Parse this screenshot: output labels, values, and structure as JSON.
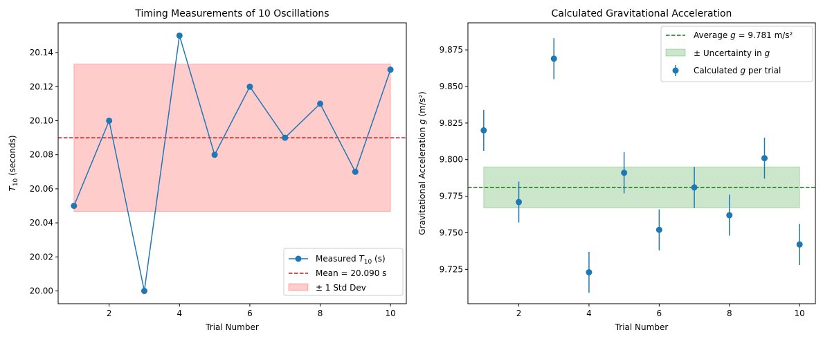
{
  "chart_data": [
    {
      "type": "line",
      "title": "Timing Measurements of 10 Oscillations",
      "xlabel": "Trial Number",
      "ylabel_main": "T",
      "ylabel_sub": "10",
      "ylabel_rest": " (seconds)",
      "xlim": [
        0.55,
        10.45
      ],
      "ylim": [
        19.9925,
        20.1575
      ],
      "xticks": [
        2,
        4,
        6,
        8,
        10
      ],
      "yticks": [
        20.0,
        20.02,
        20.04,
        20.06,
        20.08,
        20.1,
        20.12,
        20.14
      ],
      "ytick_labels": [
        "20.00",
        "20.02",
        "20.04",
        "20.06",
        "20.08",
        "20.10",
        "20.12",
        "20.14"
      ],
      "x": [
        1,
        2,
        3,
        4,
        5,
        6,
        7,
        8,
        9,
        10
      ],
      "series": [
        {
          "name": "Measured T10 (s)",
          "values": [
            20.05,
            20.1,
            20.0,
            20.15,
            20.08,
            20.12,
            20.09,
            20.11,
            20.07,
            20.13
          ]
        }
      ],
      "mean": 20.09,
      "band": {
        "x": [
          1,
          10
        ],
        "y": [
          20.0467,
          20.1333
        ]
      },
      "legend": {
        "placement": "lower-right",
        "entries": [
          {
            "main": "Measured ",
            "it": "T",
            "sub": "10",
            "rest": " (s)"
          },
          {
            "main": "Mean = 20.090 s"
          },
          {
            "main": "± 1 Std Dev"
          }
        ]
      },
      "colors": {
        "line": "#1f77b4",
        "mean": "#ff0000",
        "band": "#ff0000"
      }
    },
    {
      "type": "scatter",
      "title": "Calculated Gravitational Acceleration",
      "xlabel": "Trial Number",
      "ylabel_main": "Gravitational Acceleration ",
      "ylabel_it": "g",
      "ylabel_rest": " (m/s²)",
      "xlim": [
        0.55,
        10.45
      ],
      "ylim": [
        9.7015,
        9.8935
      ],
      "xticks": [
        2,
        4,
        6,
        8,
        10
      ],
      "yticks": [
        9.725,
        9.75,
        9.775,
        9.8,
        9.825,
        9.85,
        9.875
      ],
      "ytick_labels": [
        "9.725",
        "9.750",
        "9.775",
        "9.800",
        "9.825",
        "9.850",
        "9.875"
      ],
      "x": [
        1,
        2,
        3,
        4,
        5,
        6,
        7,
        8,
        9,
        10
      ],
      "series": [
        {
          "name": "Calculated g per trial",
          "values": [
            9.82,
            9.771,
            9.869,
            9.723,
            9.791,
            9.752,
            9.781,
            9.762,
            9.801,
            9.742
          ]
        }
      ],
      "error": 0.014,
      "mean": 9.781,
      "band": {
        "x": [
          1,
          10
        ],
        "y": [
          9.767,
          9.795
        ]
      },
      "legend": {
        "placement": "upper-right",
        "entries": [
          {
            "main": "Average ",
            "it": "g",
            "rest": " = 9.781 m/s²"
          },
          {
            "main": "± Uncertainty in ",
            "it": "g"
          },
          {
            "main": "Calculated ",
            "it": "g",
            "rest": " per trial"
          }
        ]
      },
      "colors": {
        "points": "#1f77b4",
        "mean": "#008000",
        "band": "#008000"
      }
    }
  ]
}
